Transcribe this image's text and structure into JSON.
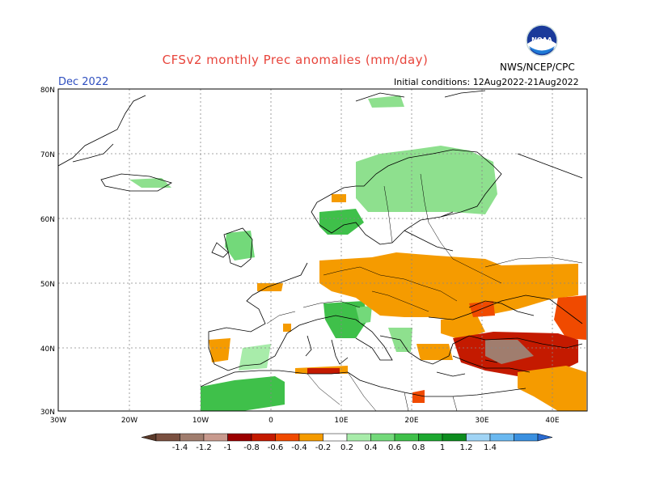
{
  "header": {
    "title": "CFSv2 monthly Prec anomalies (mm/day)",
    "month": "Dec 2022",
    "initial_conditions": "Initial conditions: 12Aug2022-21Aug2022",
    "agency": "NWS/NCEP/CPC",
    "logo_text": "NOAA"
  },
  "axes": {
    "lat_labels": [
      "80N",
      "70N",
      "60N",
      "50N",
      "40N",
      "30N"
    ],
    "lon_labels": [
      "30W",
      "20W",
      "10W",
      "0",
      "10E",
      "20E",
      "30E",
      "40E"
    ]
  },
  "legend": {
    "labels": [
      "-1.4",
      "-1.2",
      "-1",
      "-0.8",
      "-0.6",
      "-0.4",
      "-0.2",
      "0.2",
      "0.4",
      "0.6",
      "0.8",
      "1",
      "1.2",
      "1.4"
    ],
    "colors": {
      "below_min": "#5a3a2a",
      "neg": [
        "#7a5040",
        "#a07d6e",
        "#c89a8e",
        "#9b0000",
        "#c41a00",
        "#f04a00",
        "#f59b00"
      ],
      "neutral": "#ffffff",
      "pos": [
        "#a8ecaa",
        "#73d97a",
        "#3fc04a",
        "#1da830",
        "#0d8c1f",
        "#a0d4f5",
        "#6ab8f0",
        "#3a90e0"
      ],
      "above_max": "#2a6ad0"
    }
  }
}
